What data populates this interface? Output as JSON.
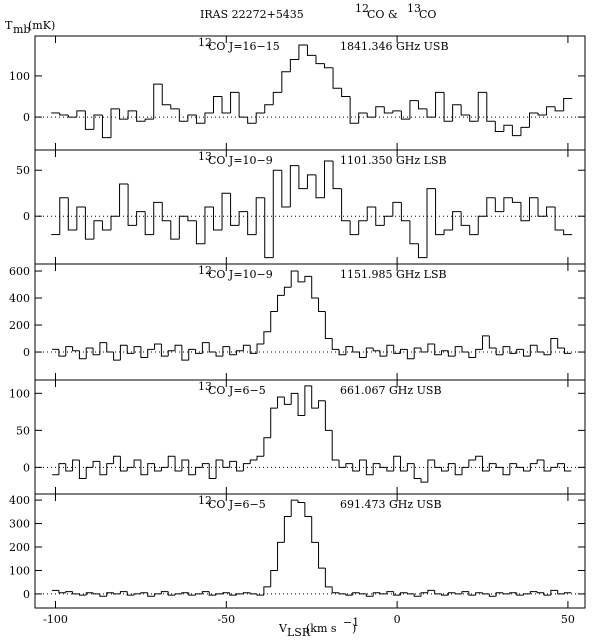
{
  "title": [
    "IRAS 22272+5435",
    "12",
    "CO &",
    "13",
    "CO"
  ],
  "y_label": [
    "T",
    "mb",
    "(mK)"
  ],
  "x_label": [
    "V",
    "LSR",
    "(km s",
    "−1",
    ")"
  ],
  "chart_data": [
    {
      "type": "step",
      "species_mass": "12",
      "species": "CO J=16−15",
      "frequency": "1841.346 GHz USB",
      "color": "#000000",
      "xlim": [
        -106,
        55
      ],
      "xticks": [
        -100,
        -50,
        0,
        50
      ],
      "ylim": [
        -80,
        197
      ],
      "yticks": [
        0,
        100
      ],
      "zero_line": true,
      "x": [
        -100,
        -97.5,
        -95,
        -92.5,
        -90,
        -87.5,
        -85,
        -82.5,
        -80,
        -77.5,
        -75,
        -72.5,
        -70,
        -67.5,
        -65,
        -62.5,
        -60,
        -57.5,
        -55,
        -52.5,
        -50,
        -47.5,
        -45,
        -42.5,
        -40,
        -37.5,
        -35,
        -32.5,
        -30,
        -27.5,
        -25,
        -22.5,
        -20,
        -17.5,
        -15,
        -12.5,
        -10,
        -7.5,
        -5,
        -2.5,
        0,
        2.5,
        5,
        7.5,
        10,
        12.5,
        15,
        17.5,
        20,
        22.5,
        25,
        27.5,
        30,
        32.5,
        35,
        37.5,
        40,
        42.5,
        45,
        47.5,
        50
      ],
      "values": [
        10,
        5,
        0,
        15,
        -30,
        5,
        -50,
        20,
        -5,
        15,
        -10,
        -5,
        80,
        30,
        20,
        -10,
        5,
        -15,
        10,
        50,
        10,
        60,
        0,
        -15,
        10,
        30,
        60,
        110,
        140,
        175,
        150,
        130,
        120,
        70,
        50,
        -15,
        10,
        0,
        25,
        10,
        15,
        -5,
        40,
        20,
        0,
        60,
        -10,
        30,
        5,
        -10,
        60,
        -10,
        -35,
        -20,
        -45,
        -25,
        10,
        5,
        25,
        15,
        45
      ]
    },
    {
      "type": "step",
      "species_mass": "13",
      "species": "CO J=10−9",
      "frequency": "1101.350 GHz LSB",
      "color": "#000000",
      "xlim": [
        -106,
        55
      ],
      "xticks": [
        -100,
        -50,
        0,
        50
      ],
      "ylim": [
        -52,
        72
      ],
      "yticks": [
        0,
        50
      ],
      "zero_line": true,
      "x": [
        -100,
        -97.5,
        -95,
        -92.5,
        -90,
        -87.5,
        -85,
        -82.5,
        -80,
        -77.5,
        -75,
        -72.5,
        -70,
        -67.5,
        -65,
        -62.5,
        -60,
        -57.5,
        -55,
        -52.5,
        -50,
        -47.5,
        -45,
        -42.5,
        -40,
        -37.5,
        -35,
        -32.5,
        -30,
        -27.5,
        -25,
        -22.5,
        -20,
        -17.5,
        -15,
        -12.5,
        -10,
        -7.5,
        -5,
        -2.5,
        0,
        2.5,
        5,
        7.5,
        10,
        12.5,
        15,
        17.5,
        20,
        22.5,
        25,
        27.5,
        30,
        32.5,
        35,
        37.5,
        40,
        42.5,
        45,
        47.5,
        50
      ],
      "values": [
        -20,
        20,
        -15,
        10,
        -25,
        -5,
        -15,
        0,
        35,
        -10,
        5,
        -20,
        15,
        -5,
        -25,
        0,
        -5,
        -30,
        10,
        -15,
        25,
        -10,
        5,
        -20,
        20,
        -45,
        50,
        10,
        55,
        30,
        45,
        20,
        60,
        30,
        -5,
        -20,
        -5,
        10,
        -10,
        0,
        15,
        -5,
        -30,
        -45,
        30,
        -20,
        -15,
        5,
        -10,
        -20,
        0,
        20,
        5,
        20,
        15,
        -5,
        20,
        0,
        10,
        -15,
        -20
      ]
    },
    {
      "type": "step",
      "species_mass": "12",
      "species": "CO J=10−9",
      "frequency": "1151.985 GHz LSB",
      "color": "#000000",
      "xlim": [
        -106,
        55
      ],
      "xticks": [
        -100,
        -50,
        0,
        50
      ],
      "ylim": [
        -207,
        652
      ],
      "yticks": [
        0,
        200,
        400,
        600
      ],
      "zero_line": true,
      "x": [
        -100,
        -98,
        -96,
        -94,
        -92,
        -90,
        -88,
        -86,
        -84,
        -82,
        -80,
        -78,
        -76,
        -74,
        -72,
        -70,
        -68,
        -66,
        -64,
        -62,
        -60,
        -58,
        -56,
        -54,
        -52,
        -50,
        -48,
        -46,
        -44,
        -42,
        -40,
        -38,
        -36,
        -34,
        -32,
        -30,
        -28,
        -26,
        -24,
        -22,
        -20,
        -18,
        -16,
        -14,
        -12,
        -10,
        -8,
        -6,
        -4,
        -2,
        0,
        2,
        4,
        6,
        8,
        10,
        12,
        14,
        16,
        18,
        20,
        22,
        24,
        26,
        28,
        30,
        32,
        34,
        36,
        38,
        40,
        42,
        44,
        46,
        48,
        50
      ],
      "values": [
        20,
        -30,
        40,
        10,
        -50,
        30,
        -20,
        70,
        0,
        -60,
        50,
        -10,
        40,
        -40,
        20,
        60,
        -30,
        10,
        50,
        -60,
        20,
        -10,
        70,
        0,
        -30,
        40,
        -20,
        10,
        50,
        -10,
        60,
        150,
        300,
        420,
        480,
        600,
        520,
        560,
        400,
        300,
        100,
        20,
        -20,
        40,
        0,
        -40,
        30,
        10,
        -30,
        50,
        -10,
        20,
        -50,
        30,
        0,
        60,
        -20,
        10,
        -30,
        40,
        0,
        -40,
        20,
        120,
        30,
        -20,
        40,
        -10,
        20,
        -30,
        50,
        0,
        -20,
        100,
        30,
        -10
      ]
    },
    {
      "type": "step",
      "species_mass": "13",
      "species": "CO J=6−5",
      "frequency": "661.067 GHz USB",
      "color": "#000000",
      "xlim": [
        -106,
        55
      ],
      "xticks": [
        -100,
        -50,
        0,
        50
      ],
      "ylim": [
        -36,
        118
      ],
      "yticks": [
        0,
        50,
        100
      ],
      "zero_line": true,
      "x": [
        -100,
        -98,
        -96,
        -94,
        -92,
        -90,
        -88,
        -86,
        -84,
        -82,
        -80,
        -78,
        -76,
        -74,
        -72,
        -70,
        -68,
        -66,
        -64,
        -62,
        -60,
        -58,
        -56,
        -54,
        -52,
        -50,
        -48,
        -46,
        -44,
        -42,
        -40,
        -38,
        -36,
        -34,
        -32,
        -30,
        -28,
        -26,
        -24,
        -22,
        -20,
        -18,
        -16,
        -14,
        -12,
        -10,
        -8,
        -6,
        -4,
        -2,
        0,
        2,
        4,
        6,
        8,
        10,
        12,
        14,
        16,
        18,
        20,
        22,
        24,
        26,
        28,
        30,
        32,
        34,
        36,
        38,
        40,
        42,
        44,
        46,
        48,
        50
      ],
      "values": [
        -10,
        5,
        -5,
        10,
        -15,
        0,
        8,
        -10,
        5,
        15,
        -5,
        0,
        10,
        -10,
        5,
        -5,
        0,
        15,
        -5,
        10,
        -10,
        0,
        5,
        -15,
        10,
        0,
        8,
        -5,
        5,
        10,
        15,
        40,
        80,
        95,
        85,
        100,
        70,
        110,
        80,
        90,
        50,
        10,
        0,
        5,
        -5,
        10,
        -10,
        5,
        0,
        -5,
        15,
        -5,
        5,
        -15,
        -20,
        10,
        0,
        -5,
        5,
        -10,
        0,
        10,
        15,
        -5,
        5,
        0,
        -10,
        5,
        0,
        -5,
        5,
        10,
        -5,
        0,
        5,
        -5
      ]
    },
    {
      "type": "step",
      "species_mass": "12",
      "species": "CO J=6−5",
      "frequency": "691.473 GHz USB",
      "color": "#000000",
      "xlim": [
        -106,
        55
      ],
      "xticks": [
        -100,
        -50,
        0,
        50
      ],
      "ylim": [
        -60,
        426
      ],
      "yticks": [
        0,
        100,
        200,
        300,
        400
      ],
      "zero_line": true,
      "x": [
        -100,
        -98,
        -96,
        -94,
        -92,
        -90,
        -88,
        -86,
        -84,
        -82,
        -80,
        -78,
        -76,
        -74,
        -72,
        -70,
        -68,
        -66,
        -64,
        -62,
        -60,
        -58,
        -56,
        -54,
        -52,
        -50,
        -48,
        -46,
        -44,
        -42,
        -40,
        -38,
        -36,
        -34,
        -32,
        -30,
        -28,
        -26,
        -24,
        -22,
        -20,
        -18,
        -16,
        -14,
        -12,
        -10,
        -8,
        -6,
        -4,
        -2,
        0,
        2,
        4,
        6,
        8,
        10,
        12,
        14,
        16,
        18,
        20,
        22,
        24,
        26,
        28,
        30,
        32,
        34,
        36,
        38,
        40,
        42,
        44,
        46,
        48,
        50
      ],
      "values": [
        15,
        5,
        10,
        0,
        -5,
        5,
        0,
        -10,
        5,
        0,
        10,
        -5,
        0,
        5,
        -10,
        0,
        10,
        -5,
        0,
        5,
        -5,
        0,
        10,
        -5,
        0,
        5,
        -5,
        0,
        5,
        0,
        -5,
        30,
        100,
        220,
        330,
        400,
        390,
        330,
        220,
        110,
        30,
        5,
        0,
        -5,
        5,
        0,
        -10,
        5,
        0,
        10,
        -5,
        5,
        0,
        -10,
        5,
        15,
        0,
        -5,
        5,
        0,
        10,
        -5,
        5,
        0,
        -10,
        5,
        0,
        5,
        -5,
        0,
        10,
        5,
        -5,
        15,
        0,
        5
      ]
    }
  ]
}
